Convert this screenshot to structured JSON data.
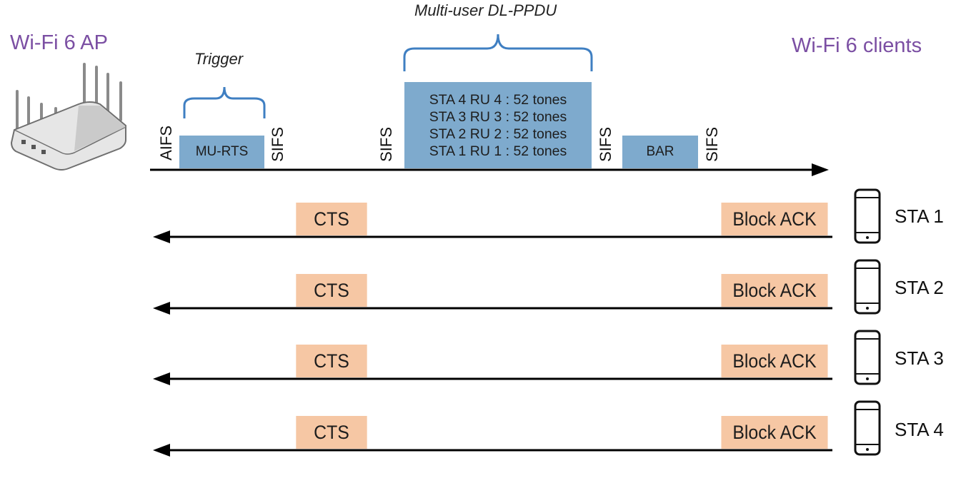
{
  "titles": {
    "ap": "Wi-Fi 6 AP",
    "clients": "Wi-Fi 6 clients"
  },
  "colors": {
    "accent_title": "#7b4fa3",
    "frame_blue": "#7eaacd",
    "frame_orange": "#f6c7a4",
    "brace_blue": "#3f7fc2"
  },
  "downlink": {
    "brace_trigger_label": "Trigger",
    "brace_ppdu_label": "Multi-user DL-PPDU",
    "aifs": "AIFS",
    "sifs": "SIFS",
    "mu_rts": "MU-RTS",
    "ppdu_lines": [
      "STA 4 RU 4 : 52 tones",
      "STA 3 RU 3 : 52 tones",
      "STA 2 RU 2 : 52 tones",
      "STA 1 RU 1 : 52 tones"
    ],
    "bar": "BAR"
  },
  "stations": [
    {
      "label": "STA 1",
      "cts": "CTS",
      "block_ack": "Block ACK"
    },
    {
      "label": "STA 2",
      "cts": "CTS",
      "block_ack": "Block ACK"
    },
    {
      "label": "STA 3",
      "cts": "CTS",
      "block_ack": "Block ACK"
    },
    {
      "label": "STA 4",
      "cts": "CTS",
      "block_ack": "Block ACK"
    }
  ]
}
